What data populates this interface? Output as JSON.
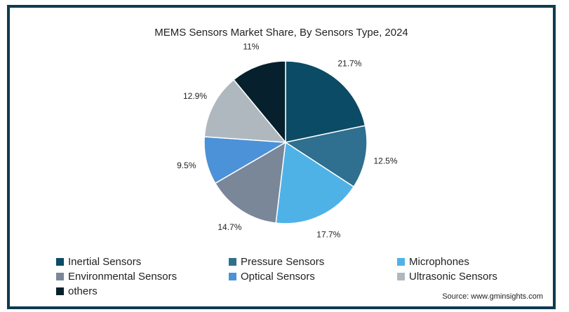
{
  "chart_data": {
    "type": "pie",
    "title": "MEMS Sensors Market Share, By Sensors Type, 2024",
    "slices": [
      {
        "name": "Inertial Sensors",
        "value": 21.7,
        "label": "21.7%",
        "color": "#0b4b66"
      },
      {
        "name": "Pressure Sensors",
        "value": 12.5,
        "label": "12.5%",
        "color": "#2f6f8f"
      },
      {
        "name": "Microphones",
        "value": 17.7,
        "label": "17.7%",
        "color": "#4fb2e6"
      },
      {
        "name": "Environmental Sensors",
        "value": 14.7,
        "label": "14.7%",
        "color": "#7a8799"
      },
      {
        "name": "Optical Sensors",
        "value": 9.5,
        "label": "9.5%",
        "color": "#4c92d8"
      },
      {
        "name": "Ultrasonic Sensors",
        "value": 12.9,
        "label": "12.9%",
        "color": "#b0b8bf"
      },
      {
        "name": "others",
        "value": 11,
        "label": "11%",
        "color": "#07202d"
      }
    ],
    "legend_position": "bottom"
  },
  "source": "Source: www.gminsights.com"
}
